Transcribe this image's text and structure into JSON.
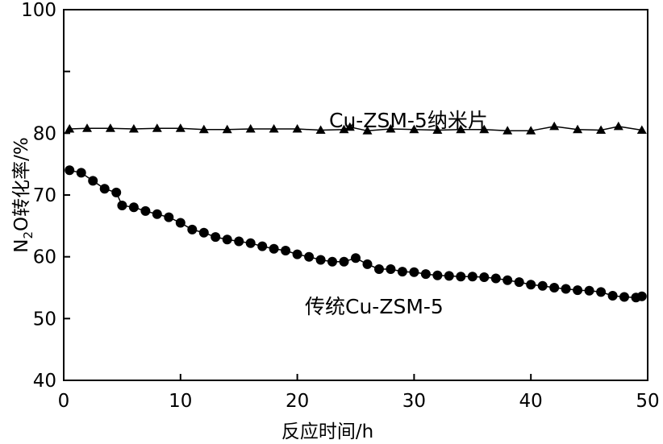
{
  "chart_data": {
    "type": "scatter",
    "xlabel": "反应时间/h",
    "ylabel_main": "N",
    "ylabel_sub": "2",
    "ylabel_rest": "O转化率/%",
    "xlim": [
      0,
      50
    ],
    "ylim": [
      40,
      100
    ],
    "x_ticks": [
      0,
      10,
      20,
      30,
      40,
      50
    ],
    "y_ticks": [
      40,
      50,
      60,
      70,
      80,
      90,
      100
    ],
    "y_tick_labels": [
      "40",
      "50",
      "60",
      "70",
      "80",
      "",
      "100"
    ],
    "grid": false,
    "annotations": [
      {
        "text": "Cu-ZSM-5纳米片",
        "x": 35.5,
        "y": 75.7
      },
      {
        "text": "传统Cu-ZSM-5",
        "x": 15.5,
        "y": 50.9
      }
    ],
    "series": [
      {
        "name": "Cu-ZSM-5纳米片",
        "marker": "triangle",
        "color": "#000000",
        "x": [
          0.5,
          2.0,
          4.0,
          6.0,
          8.0,
          10.0,
          12.0,
          14.0,
          16.0,
          18.0,
          20.0,
          22.0,
          24.0,
          24.5,
          26.0,
          28.0,
          30.0,
          32.0,
          34.0,
          36.0,
          38.0,
          40.0,
          42.0,
          44.0,
          46.0,
          47.5,
          49.5
        ],
        "y": [
          80.7,
          80.8,
          80.8,
          80.7,
          80.8,
          80.8,
          80.6,
          80.6,
          80.7,
          80.7,
          80.7,
          80.5,
          80.6,
          81.0,
          80.4,
          80.7,
          80.6,
          80.5,
          80.6,
          80.6,
          80.4,
          80.4,
          81.1,
          80.6,
          80.5,
          81.1,
          80.5
        ]
      },
      {
        "name": "传统Cu-ZSM-5",
        "marker": "circle",
        "color": "#000000",
        "x": [
          0.5,
          1.5,
          2.5,
          3.5,
          4.5,
          5.0,
          6.0,
          7.0,
          8.0,
          9.0,
          10.0,
          11.0,
          12.0,
          13.0,
          14.0,
          15.0,
          16.0,
          17.0,
          18.0,
          19.0,
          20.0,
          21.0,
          22.0,
          23.0,
          24.0,
          25.0,
          26.0,
          27.0,
          28.0,
          29.0,
          30.0,
          31.0,
          32.0,
          33.0,
          34.0,
          35.0,
          36.0,
          37.0,
          38.0,
          39.0,
          40.0,
          41.0,
          42.0,
          43.0,
          44.0,
          45.0,
          46.0,
          47.0,
          48.0,
          49.0,
          49.5
        ],
        "y": [
          74.0,
          73.6,
          72.3,
          71.0,
          70.4,
          68.3,
          68.0,
          67.4,
          66.9,
          66.4,
          65.5,
          64.4,
          63.9,
          63.2,
          62.8,
          62.5,
          62.2,
          61.7,
          61.3,
          61.0,
          60.4,
          60.0,
          59.5,
          59.2,
          59.2,
          59.8,
          58.8,
          58.0,
          58.0,
          57.6,
          57.5,
          57.2,
          57.0,
          56.9,
          56.8,
          56.8,
          56.7,
          56.5,
          56.2,
          55.9,
          55.5,
          55.3,
          55.0,
          54.8,
          54.6,
          54.5,
          54.3,
          53.7,
          53.5,
          53.4,
          53.6
        ]
      }
    ]
  }
}
